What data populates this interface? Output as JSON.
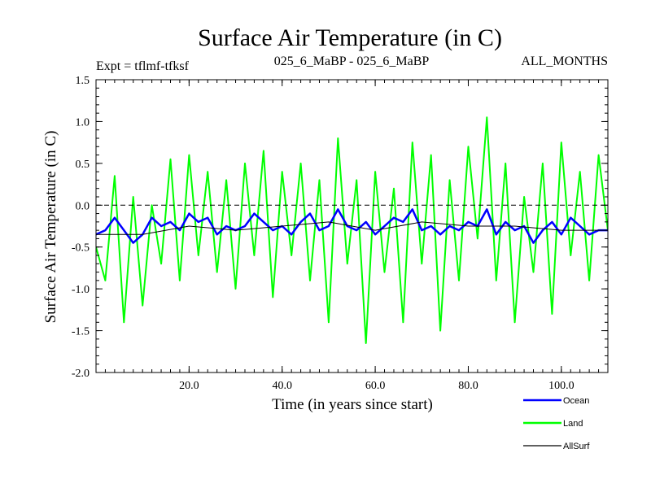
{
  "chart_data": {
    "type": "line",
    "title": "Surface Air Temperature (in C)",
    "subtitle_left": "Expt = tflmf-tfksf",
    "subtitle_center": "025_6_MaBP - 025_6_MaBP",
    "subtitle_right": "ALL_MONTHS",
    "xlabel": "Time (in years since start)",
    "ylabel": "Surface Air Temperature (in C)",
    "xlim": [
      0,
      110
    ],
    "ylim": [
      -2.0,
      1.5
    ],
    "xticks": [
      20,
      40,
      60,
      80,
      100
    ],
    "xtick_labels": [
      "20.0",
      "40.0",
      "60.0",
      "80.0",
      "100.0"
    ],
    "yticks": [
      -2.0,
      -1.5,
      -1.0,
      -0.5,
      0.0,
      0.5,
      1.0,
      1.5
    ],
    "ytick_labels": [
      "-2.0",
      "-1.5",
      "-1.0",
      "-0.5",
      "0.0",
      "0.5",
      "1.0",
      "1.5"
    ],
    "reference_line": 0.0,
    "series": [
      {
        "name": "Land",
        "color": "#00ff00",
        "x": [
          0,
          2,
          4,
          6,
          8,
          10,
          12,
          14,
          16,
          18,
          20,
          22,
          24,
          26,
          28,
          30,
          32,
          34,
          36,
          38,
          40,
          42,
          44,
          46,
          48,
          50,
          52,
          54,
          56,
          58,
          60,
          62,
          64,
          66,
          68,
          70,
          72,
          74,
          76,
          78,
          80,
          82,
          84,
          86,
          88,
          90,
          92,
          94,
          96,
          98,
          100,
          102,
          104,
          106,
          108,
          110
        ],
        "values": [
          -0.5,
          -0.9,
          0.35,
          -1.4,
          0.1,
          -1.2,
          0.0,
          -0.7,
          0.55,
          -0.9,
          0.6,
          -0.6,
          0.4,
          -0.8,
          0.3,
          -1.0,
          0.5,
          -0.6,
          0.65,
          -1.1,
          0.4,
          -0.6,
          0.5,
          -0.9,
          0.3,
          -1.4,
          0.8,
          -0.7,
          0.3,
          -1.65,
          0.4,
          -0.8,
          0.2,
          -1.4,
          0.75,
          -0.7,
          0.6,
          -1.5,
          0.3,
          -0.9,
          0.7,
          -0.4,
          1.05,
          -0.9,
          0.5,
          -1.4,
          0.1,
          -0.8,
          0.5,
          -1.3,
          0.75,
          -0.6,
          0.4,
          -0.9,
          0.6,
          -0.3
        ]
      },
      {
        "name": "Ocean",
        "color": "#0000ff",
        "x": [
          0,
          2,
          4,
          6,
          8,
          10,
          12,
          14,
          16,
          18,
          20,
          22,
          24,
          26,
          28,
          30,
          32,
          34,
          36,
          38,
          40,
          42,
          44,
          46,
          48,
          50,
          52,
          54,
          56,
          58,
          60,
          62,
          64,
          66,
          68,
          70,
          72,
          74,
          76,
          78,
          80,
          82,
          84,
          86,
          88,
          90,
          92,
          94,
          96,
          98,
          100,
          102,
          104,
          106,
          108,
          110
        ],
        "values": [
          -0.35,
          -0.3,
          -0.15,
          -0.3,
          -0.45,
          -0.35,
          -0.15,
          -0.25,
          -0.2,
          -0.3,
          -0.1,
          -0.2,
          -0.15,
          -0.35,
          -0.25,
          -0.3,
          -0.25,
          -0.1,
          -0.2,
          -0.3,
          -0.25,
          -0.35,
          -0.2,
          -0.1,
          -0.3,
          -0.25,
          -0.05,
          -0.25,
          -0.3,
          -0.2,
          -0.35,
          -0.25,
          -0.15,
          -0.2,
          -0.05,
          -0.3,
          -0.25,
          -0.35,
          -0.25,
          -0.3,
          -0.2,
          -0.25,
          -0.05,
          -0.35,
          -0.2,
          -0.3,
          -0.25,
          -0.45,
          -0.3,
          -0.2,
          -0.35,
          -0.15,
          -0.25,
          -0.35,
          -0.3,
          -0.3
        ]
      },
      {
        "name": "AllSurf",
        "color": "#000000",
        "x": [
          0,
          10,
          20,
          30,
          40,
          50,
          60,
          70,
          80,
          90,
          100,
          110
        ],
        "values": [
          -0.35,
          -0.35,
          -0.25,
          -0.3,
          -0.25,
          -0.2,
          -0.3,
          -0.2,
          -0.25,
          -0.25,
          -0.3,
          -0.3
        ]
      }
    ],
    "legend": [
      {
        "name": "Ocean",
        "color": "#0000ff"
      },
      {
        "name": "Land",
        "color": "#00ff00"
      },
      {
        "name": "AllSurf",
        "color": "#000000"
      }
    ],
    "legend_position": "bottom-right"
  }
}
